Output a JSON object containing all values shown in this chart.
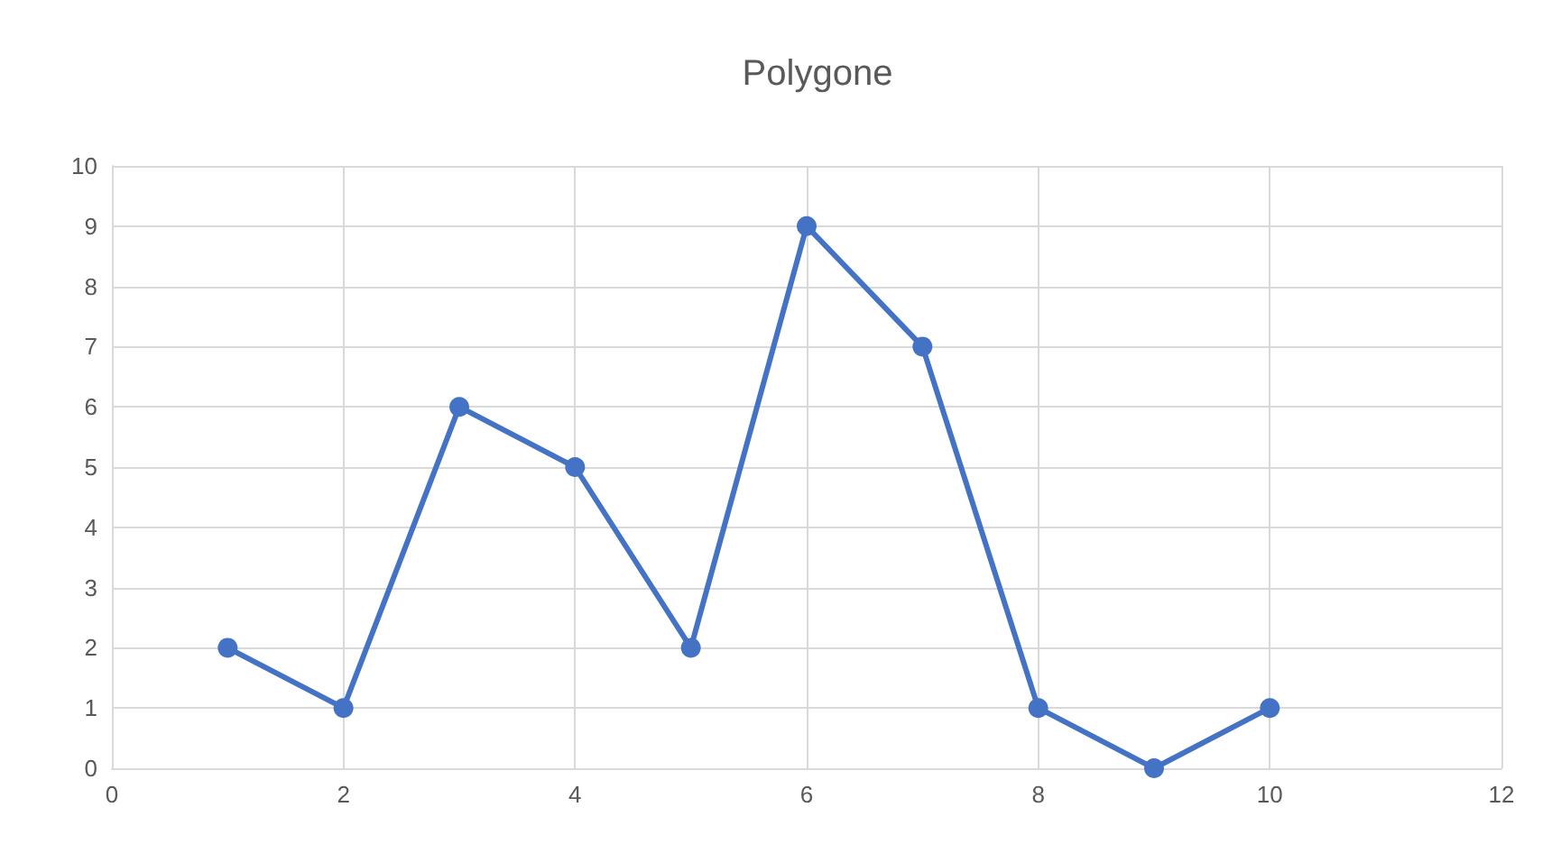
{
  "chart_data": {
    "type": "line",
    "title": "Polygone",
    "x": [
      1,
      2,
      3,
      4,
      5,
      6,
      7,
      8,
      9,
      10
    ],
    "series": [
      {
        "color": "#4472c4",
        "values": [
          2,
          1,
          6,
          5,
          2,
          9,
          7,
          1,
          0,
          1
        ]
      }
    ],
    "xlim": [
      0,
      12
    ],
    "xticks": [
      0,
      2,
      4,
      6,
      8,
      10,
      12
    ],
    "ylim": [
      0,
      10
    ],
    "yticks": [
      0,
      1,
      2,
      3,
      4,
      5,
      6,
      7,
      8,
      9,
      10
    ],
    "grid": true,
    "marker": "circle",
    "line_style": "solid"
  }
}
